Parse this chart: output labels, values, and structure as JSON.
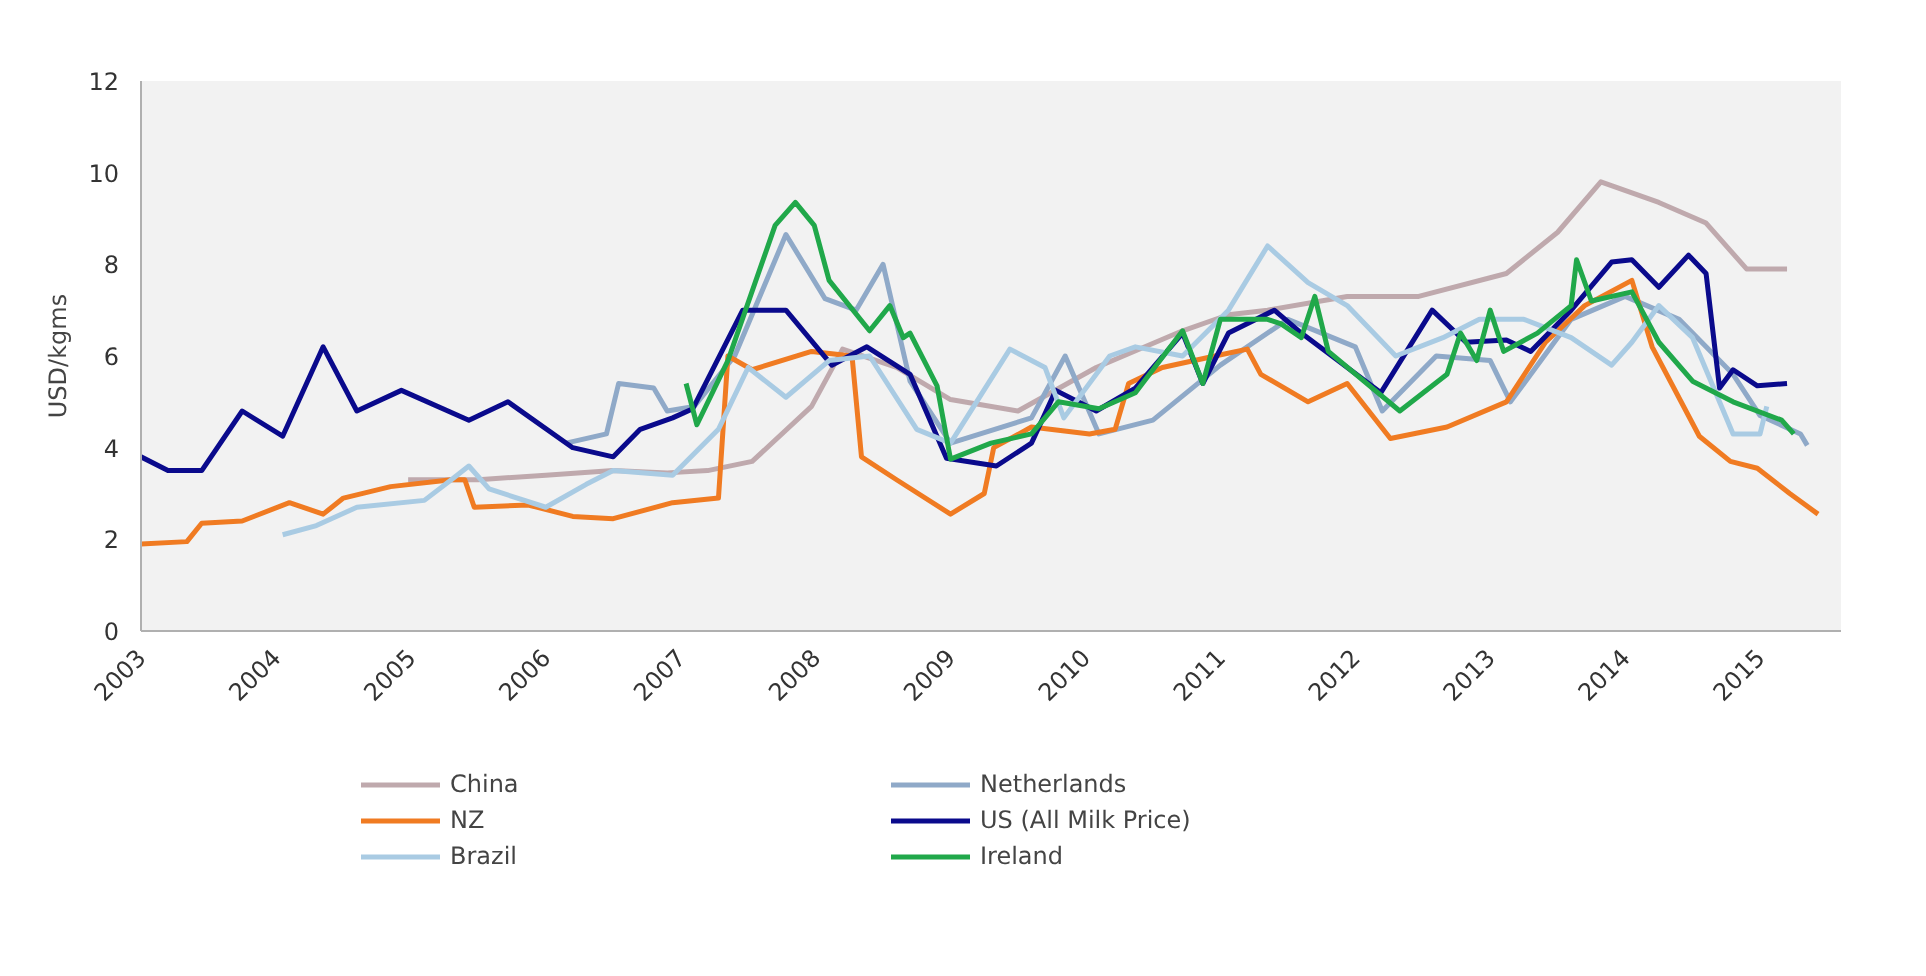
{
  "chart_data": {
    "type": "line",
    "ylabel": "USD/kgms",
    "xlim": [
      2003,
      2015.6
    ],
    "xticks": [
      2003,
      2004,
      2005,
      2006,
      2007,
      2008,
      2009,
      2010,
      2011,
      2012,
      2013,
      2014,
      2015
    ],
    "ylim": [
      0,
      12
    ],
    "yticks": [
      0,
      2,
      4,
      6,
      8,
      10,
      12
    ],
    "grid": false,
    "legend": "bottom",
    "marker": "none",
    "line_style": "solid",
    "series": [
      {
        "name": "China",
        "color": "#bfa9ad",
        "x": [
          2004.98,
          2005.5,
          2006.0,
          2006.5,
          2006.9,
          2007.2,
          2007.53,
          2007.97,
          2008.2,
          2008.6,
          2009.0,
          2009.5,
          2010.08,
          2010.72,
          2011.06,
          2011.35,
          2011.94,
          2012.47,
          2013.12,
          2013.5,
          2013.82,
          2014.25,
          2014.6,
          2014.9,
          2015.2
        ],
        "values": [
          3.3,
          3.3,
          3.4,
          3.5,
          3.45,
          3.5,
          3.7,
          4.9,
          6.15,
          5.75,
          5.05,
          4.8,
          5.75,
          6.55,
          6.9,
          7.0,
          7.3,
          7.3,
          7.8,
          8.7,
          9.8,
          9.35,
          8.9,
          7.9,
          7.9
        ]
      },
      {
        "name": "Netherlands",
        "color": "#8fa9c8",
        "x": [
          2006.15,
          2006.45,
          2006.54,
          2006.8,
          2006.9,
          2007.1,
          2007.4,
          2007.78,
          2008.07,
          2008.3,
          2008.5,
          2008.7,
          2009.0,
          2009.6,
          2009.85,
          2010.1,
          2010.5,
          2011.0,
          2011.5,
          2012.0,
          2012.2,
          2012.6,
          2013.0,
          2013.15,
          2013.6,
          2014.0,
          2014.4,
          2014.8,
          2015.0,
          2015.3,
          2015.35
        ],
        "values": [
          4.1,
          4.3,
          5.4,
          5.3,
          4.8,
          4.9,
          6.0,
          8.65,
          7.25,
          7.0,
          8.0,
          5.45,
          4.1,
          4.65,
          6.0,
          4.3,
          4.6,
          5.8,
          6.8,
          6.2,
          4.8,
          6.0,
          5.9,
          5.0,
          6.8,
          7.3,
          6.8,
          5.6,
          4.7,
          4.3,
          4.05
        ]
      },
      {
        "name": "NZ",
        "color": "#f07b22",
        "x": [
          2003.0,
          2003.34,
          2003.45,
          2003.75,
          2004.1,
          2004.35,
          2004.5,
          2004.85,
          2005.3,
          2005.4,
          2005.47,
          2005.87,
          2006.2,
          2006.5,
          2006.94,
          2007.28,
          2007.35,
          2007.53,
          2007.97,
          2008.27,
          2008.34,
          2008.6,
          2009.0,
          2009.25,
          2009.32,
          2009.6,
          2010.03,
          2010.22,
          2010.32,
          2010.57,
          2010.96,
          2011.2,
          2011.3,
          2011.65,
          2011.94,
          2012.26,
          2012.68,
          2013.12,
          2013.41,
          2013.7,
          2014.05,
          2014.2,
          2014.55,
          2014.78,
          2014.98,
          2015.22,
          2015.43
        ],
        "values": [
          1.9,
          1.95,
          2.35,
          2.4,
          2.8,
          2.55,
          2.9,
          3.15,
          3.3,
          3.3,
          2.7,
          2.75,
          2.5,
          2.45,
          2.8,
          2.9,
          6.0,
          5.7,
          6.1,
          6.0,
          3.8,
          3.3,
          2.55,
          3.0,
          4.0,
          4.45,
          4.3,
          4.4,
          5.4,
          5.75,
          6.0,
          6.15,
          5.6,
          5.0,
          5.4,
          4.2,
          4.45,
          5.0,
          6.3,
          7.1,
          7.65,
          6.2,
          4.25,
          3.7,
          3.55,
          3.0,
          2.55
        ]
      },
      {
        "name": "US (All Milk Price)",
        "color": "#0a0a8c",
        "x": [
          2003.0,
          2003.2,
          2003.45,
          2003.75,
          2004.05,
          2004.35,
          2004.6,
          2004.93,
          2005.43,
          2005.72,
          2006.2,
          2006.5,
          2006.7,
          2006.94,
          2007.09,
          2007.46,
          2007.78,
          2008.12,
          2008.38,
          2008.7,
          2008.97,
          2009.34,
          2009.6,
          2009.78,
          2010.08,
          2010.37,
          2010.72,
          2010.87,
          2011.06,
          2011.4,
          2011.6,
          2012.19,
          2012.57,
          2012.82,
          2013.12,
          2013.3,
          2013.6,
          2013.9,
          2014.05,
          2014.25,
          2014.47,
          2014.6,
          2014.7,
          2014.8,
          2014.98,
          2015.2
        ],
        "values": [
          3.8,
          3.5,
          3.5,
          4.8,
          4.25,
          6.2,
          4.8,
          5.25,
          4.6,
          5.0,
          4.0,
          3.8,
          4.4,
          4.65,
          4.85,
          7.0,
          7.0,
          5.8,
          6.2,
          5.6,
          3.77,
          3.6,
          4.1,
          5.25,
          4.8,
          5.3,
          6.5,
          5.4,
          6.5,
          7.0,
          6.5,
          5.2,
          7.0,
          6.3,
          6.35,
          6.1,
          7.0,
          8.05,
          8.1,
          7.5,
          8.2,
          7.8,
          5.3,
          5.7,
          5.35,
          5.4
        ]
      },
      {
        "name": "Brazil",
        "color": "#a9cbe3",
        "x": [
          2004.05,
          2004.3,
          2004.6,
          2005.1,
          2005.3,
          2005.43,
          2005.58,
          2006.0,
          2006.3,
          2006.5,
          2006.94,
          2007.28,
          2007.5,
          2007.78,
          2008.1,
          2008.4,
          2008.75,
          2009.0,
          2009.44,
          2009.7,
          2009.84,
          2010.18,
          2010.37,
          2010.72,
          2011.06,
          2011.35,
          2011.65,
          2011.94,
          2012.3,
          2012.65,
          2012.92,
          2013.25,
          2013.6,
          2013.9,
          2014.05,
          2014.25,
          2014.5,
          2014.8,
          2015.0,
          2015.05
        ],
        "values": [
          2.1,
          2.3,
          2.7,
          2.85,
          3.3,
          3.6,
          3.1,
          2.7,
          3.2,
          3.5,
          3.4,
          4.4,
          5.75,
          5.1,
          5.9,
          6.0,
          4.4,
          4.1,
          6.15,
          5.75,
          4.65,
          6.0,
          6.2,
          6.0,
          7.0,
          8.4,
          7.6,
          7.1,
          6.0,
          6.4,
          6.8,
          6.8,
          6.4,
          5.8,
          6.3,
          7.1,
          6.4,
          4.3,
          4.3,
          4.9
        ]
      },
      {
        "name": "Ireland",
        "color": "#20a84a",
        "x": [
          2007.04,
          2007.12,
          2007.35,
          2007.7,
          2007.85,
          2007.99,
          2008.1,
          2008.4,
          2008.55,
          2008.65,
          2008.7,
          2008.9,
          2009.0,
          2009.3,
          2009.6,
          2009.8,
          2010.1,
          2010.37,
          2010.72,
          2010.87,
          2011.0,
          2011.35,
          2011.45,
          2011.6,
          2011.7,
          2011.8,
          2012.33,
          2012.68,
          2012.78,
          2012.9,
          2013.0,
          2013.1,
          2013.35,
          2013.6,
          2013.64,
          2013.75,
          2014.05,
          2014.25,
          2014.5,
          2014.8,
          2015.16,
          2015.25
        ],
        "values": [
          5.4,
          4.5,
          5.9,
          8.85,
          9.35,
          8.85,
          7.65,
          6.55,
          7.1,
          6.4,
          6.5,
          5.35,
          3.75,
          4.1,
          4.3,
          5.0,
          4.85,
          5.2,
          6.55,
          5.4,
          6.8,
          6.8,
          6.7,
          6.4,
          7.3,
          6.1,
          4.8,
          5.6,
          6.5,
          5.9,
          7.0,
          6.1,
          6.5,
          7.1,
          8.1,
          7.2,
          7.4,
          6.3,
          5.45,
          5.0,
          4.6,
          4.3
        ]
      }
    ]
  }
}
